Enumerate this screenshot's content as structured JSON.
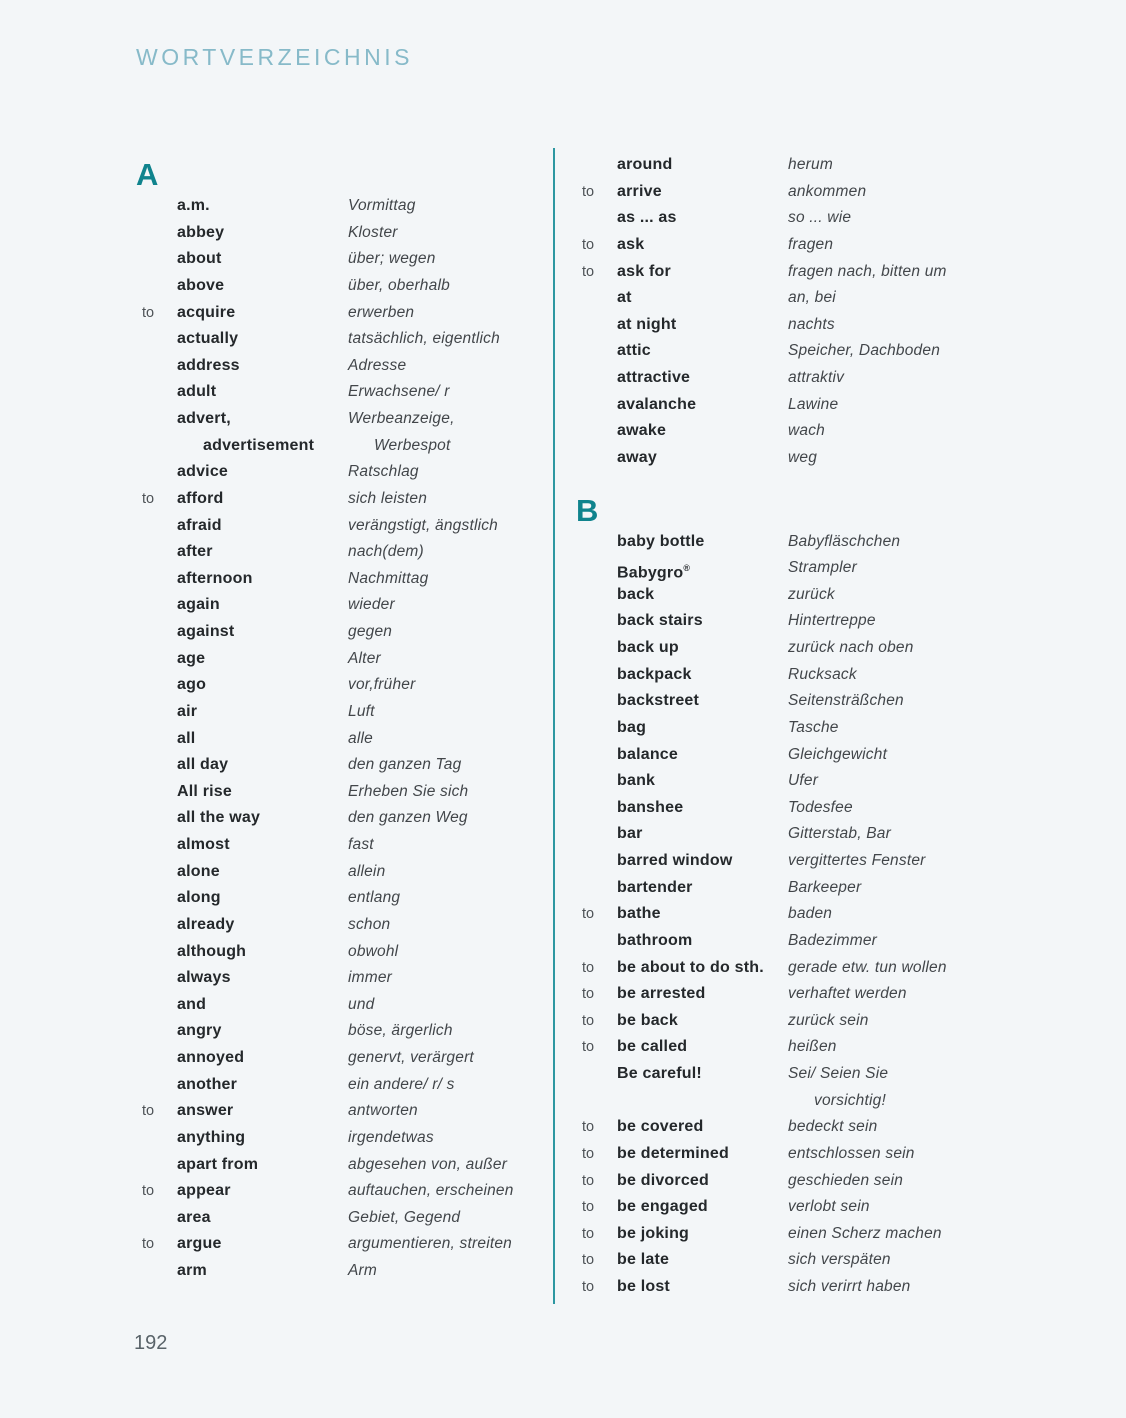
{
  "header": {
    "title": "WORTVERZEICHNIS"
  },
  "footer": {
    "page_number": "192"
  },
  "colors": {
    "background": "#f3f6f8",
    "accent": "#0f838d",
    "divider": "#2d97a1",
    "header_text": "#87bac9",
    "word_text": "#24282b",
    "translation_text": "#42464a",
    "prefix_text": "#4d5256",
    "page_number_text": "#596369"
  },
  "columns": {
    "left": {
      "rows": [
        {
          "section": "A"
        },
        {
          "word": "a.m.",
          "translation": "Vormittag"
        },
        {
          "word": "abbey",
          "translation": "Kloster"
        },
        {
          "word": "about",
          "translation": "über; wegen"
        },
        {
          "word": "above",
          "translation": "über, oberhalb"
        },
        {
          "prefix": "to",
          "word": "acquire",
          "translation": "erwerben"
        },
        {
          "word": "actually",
          "translation": "tatsächlich, eigentlich"
        },
        {
          "word": "address",
          "translation": "Adresse"
        },
        {
          "word": "adult",
          "translation": "Erwachsene/ r"
        },
        {
          "word": "advert,",
          "translation": "Werbeanzeige,"
        },
        {
          "word": "advertisement",
          "translation": "Werbespot",
          "indent_word": true,
          "indent_translation": true
        },
        {
          "word": "advice",
          "translation": "Ratschlag"
        },
        {
          "prefix": "to",
          "word": "afford",
          "translation": "sich leisten"
        },
        {
          "word": "afraid",
          "translation": "verängstigt, ängstlich"
        },
        {
          "word": "after",
          "translation": "nach(dem)"
        },
        {
          "word": "afternoon",
          "translation": "Nachmittag"
        },
        {
          "word": "again",
          "translation": "wieder"
        },
        {
          "word": "against",
          "translation": "gegen"
        },
        {
          "word": "age",
          "translation": "Alter"
        },
        {
          "word": "ago",
          "translation": "vor,früher"
        },
        {
          "word": "air",
          "translation": "Luft"
        },
        {
          "word": "all",
          "translation": "alle"
        },
        {
          "word": "all day",
          "translation": "den ganzen Tag"
        },
        {
          "word": "All rise",
          "translation": "Erheben Sie sich"
        },
        {
          "word": "all the way",
          "translation": "den ganzen Weg"
        },
        {
          "word": "almost",
          "translation": "fast"
        },
        {
          "word": "alone",
          "translation": "allein"
        },
        {
          "word": "along",
          "translation": "entlang"
        },
        {
          "word": "already",
          "translation": "schon"
        },
        {
          "word": "although",
          "translation": "obwohl"
        },
        {
          "word": "always",
          "translation": "immer"
        },
        {
          "word": "and",
          "translation": "und"
        },
        {
          "word": "angry",
          "translation": "böse, ärgerlich"
        },
        {
          "word": "annoyed",
          "translation": "genervt, verärgert"
        },
        {
          "word": "another",
          "translation": "ein andere/ r/ s"
        },
        {
          "prefix": "to",
          "word": "answer",
          "translation": "antworten"
        },
        {
          "word": "anything",
          "translation": "irgendetwas"
        },
        {
          "word": "apart from",
          "translation": "abgesehen von, außer"
        },
        {
          "prefix": "to",
          "word": "appear",
          "translation": "auftauchen, erscheinen"
        },
        {
          "word": "area",
          "translation": "Gebiet, Gegend"
        },
        {
          "prefix": "to",
          "word": "argue",
          "translation": "argumentieren, streiten"
        },
        {
          "word": "arm",
          "translation": "Arm"
        }
      ]
    },
    "right": {
      "rows": [
        {
          "word": "around",
          "translation": "herum"
        },
        {
          "prefix": "to",
          "word": "arrive",
          "translation": "ankommen"
        },
        {
          "word": "as ... as",
          "translation": "so ... wie"
        },
        {
          "prefix": "to",
          "word": "ask",
          "translation": "fragen"
        },
        {
          "prefix": "to",
          "word": "ask for",
          "translation": "fragen nach, bitten um"
        },
        {
          "word": "at",
          "translation": "an, bei"
        },
        {
          "word": "at night",
          "translation": "nachts"
        },
        {
          "word": "attic",
          "translation": "Speicher, Dachboden"
        },
        {
          "word": "attractive",
          "translation": "attraktiv"
        },
        {
          "word": "avalanche",
          "translation": "Lawine"
        },
        {
          "word": "awake",
          "translation": "wach"
        },
        {
          "word": "away",
          "translation": "weg"
        },
        {
          "section": "B"
        },
        {
          "word": "baby bottle",
          "translation": "Babyfläschchen"
        },
        {
          "word": "Babygro®",
          "translation": "Strampler"
        },
        {
          "word": "back",
          "translation": "zurück"
        },
        {
          "word": "back stairs",
          "translation": "Hintertreppe"
        },
        {
          "word": "back up",
          "translation": "zurück nach oben"
        },
        {
          "word": "backpack",
          "translation": "Rucksack"
        },
        {
          "word": "backstreet",
          "translation": "Seitensträßchen"
        },
        {
          "word": "bag",
          "translation": "Tasche"
        },
        {
          "word": "balance",
          "translation": "Gleichgewicht"
        },
        {
          "word": "bank",
          "translation": "Ufer"
        },
        {
          "word": "banshee",
          "translation": "Todesfee"
        },
        {
          "word": "bar",
          "translation": "Gitterstab, Bar"
        },
        {
          "word": "barred window",
          "translation": "vergittertes Fenster"
        },
        {
          "word": "bartender",
          "translation": "Barkeeper"
        },
        {
          "prefix": "to",
          "word": "bathe",
          "translation": "baden"
        },
        {
          "word": "bathroom",
          "translation": "Badezimmer"
        },
        {
          "prefix": "to",
          "word": "be about to do sth.",
          "translation": "gerade etw. tun wollen"
        },
        {
          "prefix": "to",
          "word": "be arrested",
          "translation": "verhaftet werden"
        },
        {
          "prefix": "to",
          "word": "be back",
          "translation": "zurück sein"
        },
        {
          "prefix": "to",
          "word": "be called",
          "translation": "heißen"
        },
        {
          "word": "Be careful!",
          "translation": "Sei/ Seien Sie"
        },
        {
          "translation": "vorsichtig!",
          "indent_translation": true
        },
        {
          "prefix": "to",
          "word": "be covered",
          "translation": "bedeckt sein"
        },
        {
          "prefix": "to",
          "word": "be determined",
          "translation": "entschlossen sein"
        },
        {
          "prefix": "to",
          "word": "be divorced",
          "translation": "geschieden sein"
        },
        {
          "prefix": "to",
          "word": "be engaged",
          "translation": "verlobt sein"
        },
        {
          "prefix": "to",
          "word": "be joking",
          "translation": "einen Scherz machen"
        },
        {
          "prefix": "to",
          "word": "be late",
          "translation": "sich verspäten"
        },
        {
          "prefix": "to",
          "word": "be lost",
          "translation": "sich verirrt haben"
        }
      ]
    }
  }
}
